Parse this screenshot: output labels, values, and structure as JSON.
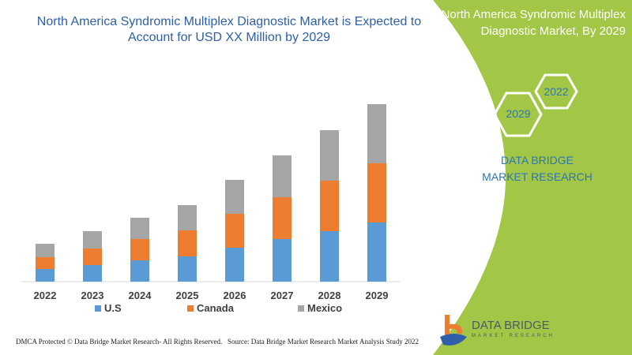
{
  "header": {
    "title": "North America Syndromic Multiplex Diagnostic Market is Expected to Account for USD XX Million by 2029"
  },
  "side_panel": {
    "title": "North America Syndromic Multiplex Diagnostic Market, By 2029",
    "hex_left": "2029",
    "hex_right": "2022",
    "brand_text": "DATA BRIDGE MARKET RESEARCH",
    "panel_color": "#a2c645"
  },
  "logo": {
    "name": "DATA BRIDGE",
    "sub": "MARKET RESEARCH"
  },
  "footer": {
    "left": "DMCA Protected © Data Bridge Market Research- All Rights Reserved.",
    "right": "Source: Data Bridge Market Research Market Analysis Study 2022"
  },
  "chart_data": {
    "type": "bar",
    "stacked": true,
    "title": "",
    "xlabel": "",
    "ylabel": "",
    "categories": [
      "2022",
      "2023",
      "2024",
      "2025",
      "2026",
      "2027",
      "2028",
      "2029"
    ],
    "ylim": [
      0,
      230
    ],
    "grid": false,
    "legend_placement": "bottom",
    "series": [
      {
        "name": "U.S",
        "color": "#5b9bd5",
        "values": [
          16,
          21,
          27,
          32,
          43,
          54,
          64,
          75
        ]
      },
      {
        "name": "Canada",
        "color": "#ed7d31",
        "values": [
          15,
          21,
          27,
          33,
          43,
          53,
          64,
          75
        ]
      },
      {
        "name": "Mexico",
        "color": "#a5a5a5",
        "values": [
          17,
          22,
          27,
          32,
          43,
          53,
          64,
          75
        ]
      }
    ]
  }
}
